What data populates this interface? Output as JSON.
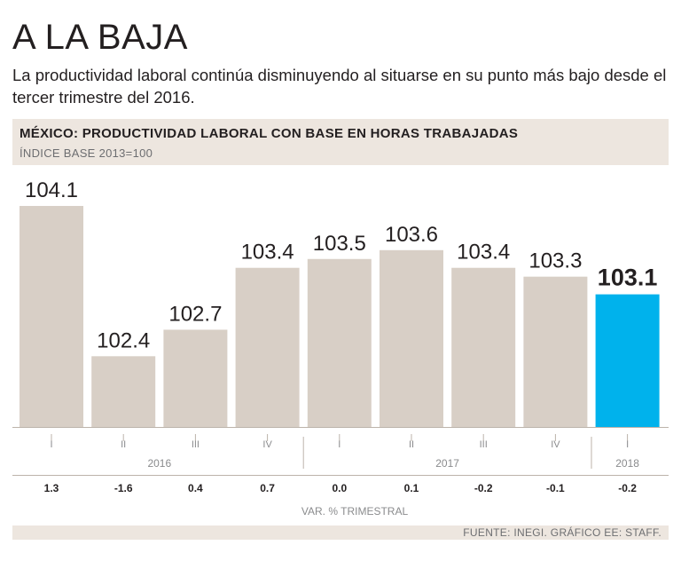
{
  "header": {
    "title": "A LA BAJA",
    "subtitle": "La productividad laboral continúa disminuyendo al situarse en su punto más bajo desde el tercer trimestre del 2016."
  },
  "chart_data": {
    "type": "bar",
    "title": "MÉXICO: PRODUCTIVIDAD LABORAL CON BASE EN HORAS TRABAJADAS",
    "subtitle": "ÍNDICE BASE 2013=100",
    "categories": [
      "I",
      "II",
      "III",
      "IV",
      "I",
      "II",
      "III",
      "IV",
      "I"
    ],
    "years": [
      {
        "label": "2016",
        "count": 4
      },
      {
        "label": "2017",
        "count": 4
      },
      {
        "label": "2018",
        "count": 1
      }
    ],
    "values": [
      104.1,
      102.4,
      102.7,
      103.4,
      103.5,
      103.6,
      103.4,
      103.3,
      103.1
    ],
    "value_labels": [
      "104.1",
      "102.4",
      "102.7",
      "103.4",
      "103.5",
      "103.6",
      "103.4",
      "103.3",
      "103.1"
    ],
    "quarterly_change": [
      "1.3",
      "-1.6",
      "0.4",
      "0.7",
      "0.0",
      "0.1",
      "-0.2",
      "-0.1",
      "-0.2"
    ],
    "quarterly_change_label": "VAR. % TRIMESTRAL",
    "highlight_index": 8,
    "colors": {
      "bar": "#d8cfc6",
      "highlight": "#00b2ec",
      "background_band": "#ede6df"
    },
    "ylim": [
      101.6,
      104.2
    ]
  },
  "footer": {
    "source": "FUENTE: INEGI. GRÁFICO EE: STAFF."
  }
}
